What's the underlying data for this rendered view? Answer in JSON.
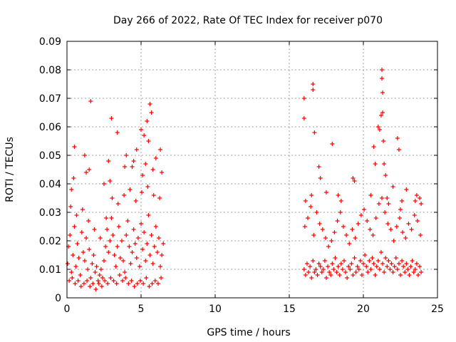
{
  "chart_data": {
    "type": "scatter",
    "title": "Day 266 of 2022, Rate Of TEC Index for receiver p070",
    "xlabel": "GPS time / hours",
    "ylabel": "ROTI / TECUs",
    "xlim": [
      0,
      25
    ],
    "ylim": [
      0,
      0.09
    ],
    "x_ticks": [
      0,
      5,
      10,
      15,
      20,
      25
    ],
    "y_ticks": [
      0,
      0.01,
      0.02,
      0.03,
      0.04,
      0.05,
      0.06,
      0.07,
      0.08,
      0.09
    ],
    "x_tick_labels": [
      "0",
      "5",
      "10",
      "15",
      "20",
      "25"
    ],
    "y_tick_labels": [
      "0",
      "0.01",
      "0.02",
      "0.03",
      "0.04",
      "0.05",
      "0.06",
      "0.07",
      "0.08",
      "0.09"
    ],
    "grid": true,
    "marker": "+",
    "series": [
      {
        "name": "ROTI",
        "color": "#ff0000",
        "x": [
          0.05,
          0.1,
          0.2,
          0.3,
          0.4,
          0.5,
          0.6,
          0.7,
          0.8,
          0.9,
          1.0,
          1.1,
          1.2,
          1.3,
          1.4,
          1.5,
          1.6,
          1.7,
          1.8,
          1.9,
          2.0,
          2.1,
          2.2,
          2.3,
          2.4,
          2.5,
          2.6,
          2.7,
          2.8,
          2.9,
          3.0,
          3.1,
          3.2,
          3.3,
          3.4,
          3.5,
          3.6,
          3.7,
          3.8,
          3.9,
          4.0,
          4.1,
          4.2,
          4.3,
          4.4,
          4.5,
          4.6,
          4.7,
          4.8,
          4.9,
          5.0,
          5.1,
          5.2,
          5.3,
          5.4,
          5.5,
          5.6,
          5.7,
          5.8,
          5.9,
          6.0,
          6.1,
          6.2,
          6.3,
          6.4,
          6.5,
          0.15,
          0.35,
          0.55,
          0.75,
          0.95,
          1.15,
          1.35,
          1.55,
          1.75,
          1.95,
          2.15,
          2.35,
          2.55,
          2.75,
          2.95,
          3.15,
          3.35,
          3.55,
          3.75,
          3.95,
          4.15,
          4.35,
          4.55,
          4.75,
          4.95,
          5.15,
          5.35,
          5.55,
          5.75,
          5.95,
          6.15,
          6.35,
          0.25,
          0.65,
          1.05,
          1.45,
          1.85,
          2.25,
          2.65,
          3.05,
          3.45,
          3.85,
          4.25,
          4.65,
          5.05,
          5.45,
          5.85,
          6.25,
          0.5,
          1.2,
          1.5,
          1.6,
          2.5,
          2.8,
          3.0,
          3.4,
          4.0,
          4.4,
          4.7,
          5.0,
          5.2,
          5.4,
          5.5,
          5.6,
          5.7,
          6.0,
          6.3,
          0.3,
          0.45,
          1.3,
          2.9,
          3.9,
          4.5,
          5.1,
          5.3,
          5.8,
          6.4,
          16.0,
          16.1,
          16.2,
          16.3,
          16.4,
          16.5,
          16.6,
          16.7,
          16.8,
          16.9,
          17.0,
          17.1,
          17.2,
          17.3,
          17.4,
          17.5,
          17.6,
          17.7,
          17.8,
          17.9,
          18.0,
          18.1,
          18.2,
          18.3,
          18.4,
          18.5,
          18.6,
          18.7,
          18.8,
          18.9,
          19.0,
          19.1,
          19.2,
          19.3,
          19.4,
          19.5,
          19.6,
          19.7,
          19.8,
          19.9,
          20.0,
          20.1,
          20.2,
          20.3,
          20.4,
          20.5,
          20.6,
          20.7,
          20.8,
          20.9,
          21.0,
          21.1,
          21.2,
          21.3,
          21.4,
          21.5,
          21.6,
          21.7,
          21.8,
          21.9,
          22.0,
          22.1,
          22.2,
          22.3,
          22.4,
          22.5,
          22.6,
          22.7,
          22.8,
          22.9,
          23.0,
          23.1,
          23.2,
          23.3,
          23.4,
          23.5,
          23.6,
          23.7,
          23.8,
          23.9,
          16.05,
          16.25,
          16.45,
          16.65,
          16.85,
          17.05,
          17.25,
          17.45,
          17.65,
          17.85,
          18.05,
          18.25,
          18.45,
          18.65,
          18.85,
          19.05,
          19.25,
          19.45,
          19.65,
          19.85,
          20.05,
          20.25,
          20.45,
          20.65,
          20.85,
          21.05,
          21.25,
          21.45,
          21.65,
          21.85,
          22.05,
          22.25,
          22.45,
          22.65,
          22.85,
          23.05,
          23.25,
          23.45,
          23.65,
          23.85,
          16.0,
          16.0,
          16.1,
          16.5,
          16.6,
          16.6,
          16.7,
          17.0,
          17.1,
          17.5,
          17.9,
          18.3,
          18.5,
          19.3,
          19.4,
          20.5,
          20.7,
          20.8,
          21.0,
          21.1,
          21.2,
          21.25,
          21.25,
          21.3,
          21.3,
          21.35,
          21.4,
          21.5,
          21.6,
          21.7,
          22.0,
          22.3,
          22.4,
          22.5,
          22.6,
          22.9,
          23.5,
          23.6,
          23.8,
          23.9
        ],
        "y": [
          0.012,
          0.018,
          0.022,
          0.009,
          0.015,
          0.025,
          0.011,
          0.019,
          0.014,
          0.008,
          0.023,
          0.016,
          0.013,
          0.021,
          0.01,
          0.017,
          0.007,
          0.012,
          0.015,
          0.009,
          0.011,
          0.006,
          0.008,
          0.01,
          0.007,
          0.013,
          0.018,
          0.024,
          0.016,
          0.02,
          0.028,
          0.022,
          0.015,
          0.011,
          0.018,
          0.025,
          0.014,
          0.02,
          0.013,
          0.009,
          0.022,
          0.027,
          0.018,
          0.012,
          0.016,
          0.024,
          0.019,
          0.014,
          0.021,
          0.011,
          0.026,
          0.017,
          0.023,
          0.013,
          0.019,
          0.029,
          0.015,
          0.022,
          0.012,
          0.018,
          0.025,
          0.016,
          0.021,
          0.011,
          0.015,
          0.019,
          0.006,
          0.007,
          0.005,
          0.006,
          0.004,
          0.005,
          0.006,
          0.004,
          0.005,
          0.003,
          0.005,
          0.004,
          0.006,
          0.005,
          0.007,
          0.006,
          0.005,
          0.008,
          0.006,
          0.007,
          0.005,
          0.006,
          0.004,
          0.005,
          0.006,
          0.005,
          0.007,
          0.004,
          0.005,
          0.006,
          0.005,
          0.007,
          0.032,
          0.029,
          0.031,
          0.027,
          0.024,
          0.021,
          0.028,
          0.035,
          0.033,
          0.036,
          0.038,
          0.034,
          0.037,
          0.039,
          0.036,
          0.035,
          0.053,
          0.05,
          0.045,
          0.069,
          0.04,
          0.048,
          0.063,
          0.058,
          0.05,
          0.046,
          0.052,
          0.059,
          0.057,
          0.062,
          0.055,
          0.068,
          0.065,
          0.049,
          0.052,
          0.038,
          0.042,
          0.044,
          0.041,
          0.046,
          0.048,
          0.043,
          0.047,
          0.045,
          0.044,
          0.01,
          0.008,
          0.012,
          0.009,
          0.011,
          0.007,
          0.013,
          0.009,
          0.01,
          0.008,
          0.012,
          0.011,
          0.009,
          0.01,
          0.013,
          0.007,
          0.011,
          0.009,
          0.008,
          0.012,
          0.01,
          0.014,
          0.009,
          0.011,
          0.008,
          0.012,
          0.01,
          0.013,
          0.009,
          0.007,
          0.011,
          0.01,
          0.012,
          0.008,
          0.014,
          0.009,
          0.011,
          0.01,
          0.013,
          0.008,
          0.012,
          0.015,
          0.011,
          0.009,
          0.013,
          0.01,
          0.014,
          0.012,
          0.008,
          0.011,
          0.013,
          0.01,
          0.016,
          0.012,
          0.009,
          0.014,
          0.011,
          0.013,
          0.01,
          0.012,
          0.009,
          0.011,
          0.014,
          0.01,
          0.012,
          0.008,
          0.013,
          0.011,
          0.009,
          0.012,
          0.01,
          0.008,
          0.011,
          0.013,
          0.009,
          0.01,
          0.012,
          0.008,
          0.011,
          0.009,
          0.025,
          0.028,
          0.032,
          0.022,
          0.03,
          0.026,
          0.024,
          0.021,
          0.018,
          0.02,
          0.023,
          0.027,
          0.03,
          0.025,
          0.022,
          0.019,
          0.024,
          0.021,
          0.026,
          0.029,
          0.031,
          0.027,
          0.024,
          0.022,
          0.028,
          0.033,
          0.035,
          0.03,
          0.026,
          0.024,
          0.02,
          0.025,
          0.028,
          0.023,
          0.021,
          0.026,
          0.024,
          0.029,
          0.027,
          0.022,
          0.063,
          0.07,
          0.034,
          0.036,
          0.075,
          0.073,
          0.058,
          0.046,
          0.042,
          0.037,
          0.054,
          0.036,
          0.034,
          0.042,
          0.041,
          0.036,
          0.053,
          0.047,
          0.06,
          0.059,
          0.064,
          0.08,
          0.077,
          0.072,
          0.065,
          0.055,
          0.047,
          0.043,
          0.035,
          0.033,
          0.039,
          0.056,
          0.052,
          0.031,
          0.034,
          0.038,
          0.034,
          0.036,
          0.035,
          0.033
        ]
      }
    ]
  }
}
